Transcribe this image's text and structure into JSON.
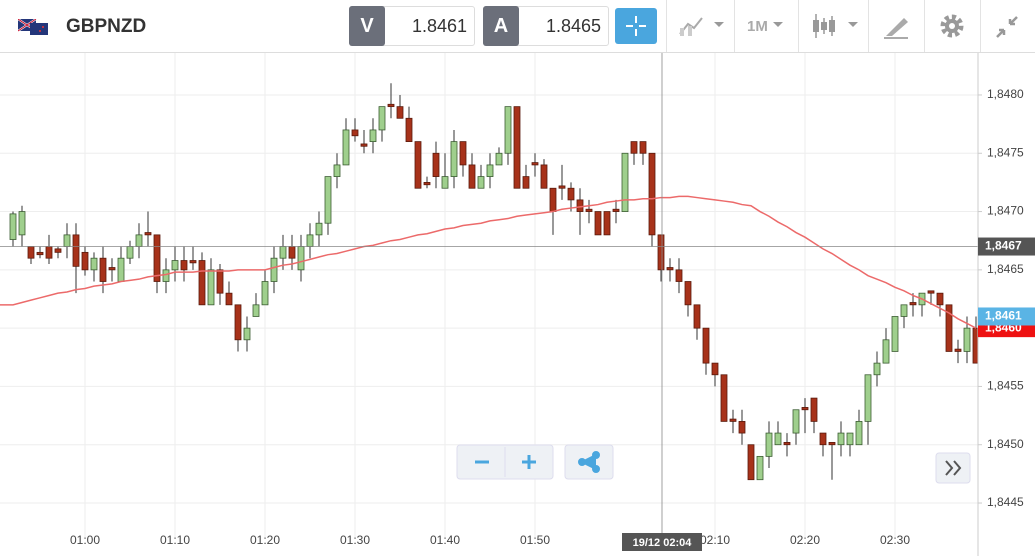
{
  "header": {
    "symbol": "GBPNZD",
    "bid_label": "V",
    "bid": "1.8461",
    "ask_label": "A",
    "ask": "1.8465",
    "timeframe": "1M"
  },
  "chart_data": {
    "type": "candlestick",
    "categories": [
      null,
      null,
      null,
      null,
      null,
      null,
      null,
      null,
      "01:00",
      null,
      null,
      null,
      null,
      null,
      null,
      null,
      null,
      null,
      "01:10",
      null,
      null,
      null,
      null,
      null,
      null,
      null,
      null,
      null,
      "01:20",
      null,
      null,
      null,
      null,
      null,
      null,
      null,
      null,
      null,
      "01:30",
      null,
      null,
      null,
      null,
      null,
      null,
      null,
      null,
      null,
      "01:40",
      null,
      null,
      null,
      null,
      null,
      null,
      null,
      null,
      null,
      "01:50",
      null,
      null,
      null,
      null,
      null,
      null,
      null,
      null,
      null,
      null,
      null,
      null,
      null,
      null,
      null,
      null,
      null,
      null,
      null,
      "02:10",
      null,
      null,
      null,
      null,
      null,
      null,
      null,
      null,
      null,
      "02:20",
      null,
      null,
      null,
      null,
      null,
      null,
      null,
      null,
      null,
      "02:30",
      null,
      null,
      null,
      null,
      null,
      null,
      null,
      null,
      null
    ],
    "open": [
      1.84676,
      1.8468,
      1.8467,
      1.84665,
      1.8467,
      1.84668,
      1.8467,
      1.8468,
      1.84665,
      1.8465,
      1.8466,
      1.84652,
      1.8464,
      1.8466,
      1.8467,
      1.84682,
      1.8468,
      1.8464,
      1.8465,
      1.84658,
      1.84658,
      1.84658,
      1.8462,
      1.8465,
      1.8463,
      1.8462,
      1.8459,
      1.8461,
      1.8462,
      1.8464,
      1.8466,
      1.8467,
      1.8465,
      1.8467,
      1.8468,
      1.8469,
      1.8473,
      1.8474,
      1.8477,
      1.84758,
      1.8476,
      1.8477,
      1.84792,
      1.8479,
      1.8478,
      1.8476,
      1.84725,
      1.8475,
      1.8472,
      1.8473,
      1.8476,
      1.8474,
      1.8472,
      1.8473,
      1.8474,
      1.8475,
      1.8479,
      1.8473,
      1.84742,
      1.8474,
      1.8472,
      1.84722,
      1.8472,
      1.8471,
      1.84702,
      1.847,
      1.847,
      1.84702,
      1.847,
      1.8476,
      1.8476,
      1.8475,
      1.8468,
      1.84652,
      1.8465,
      1.8464,
      1.8462,
      1.846,
      1.8457,
      1.8456,
      1.84522,
      1.8452,
      1.845,
      1.8447,
      1.8449,
      1.845,
      1.84502,
      1.8451,
      1.84532,
      1.8454,
      1.8451,
      1.84502,
      1.845,
      1.845,
      1.845,
      1.8452,
      1.8456,
      1.8457,
      1.8458,
      1.8461,
      1.84622,
      1.8462,
      1.84632,
      1.8463,
      1.8462,
      1.84582,
      1.8458,
      1.846
    ],
    "high": [
      1.847,
      1.84705,
      1.8467,
      1.8467,
      1.8468,
      1.8467,
      1.8469,
      1.8469,
      1.8467,
      1.84665,
      1.8467,
      1.8466,
      1.8467,
      1.84675,
      1.8469,
      1.847,
      1.8468,
      1.8466,
      1.8467,
      1.8467,
      1.8467,
      1.84665,
      1.8466,
      1.84655,
      1.8464,
      1.8462,
      1.8461,
      1.8463,
      1.8465,
      1.8467,
      1.8468,
      1.8468,
      1.8468,
      1.8469,
      1.847,
      1.8473,
      1.8475,
      1.8478,
      1.8478,
      1.8477,
      1.8478,
      1.8479,
      1.8481,
      1.848,
      1.8479,
      1.8476,
      1.8473,
      1.8476,
      1.8475,
      1.8477,
      1.8476,
      1.8475,
      1.8474,
      1.8475,
      1.84755,
      1.8479,
      1.8479,
      1.8474,
      1.8475,
      1.84745,
      1.8472,
      1.8474,
      1.84725,
      1.8472,
      1.8471,
      1.847,
      1.847,
      1.8471,
      1.8475,
      1.8476,
      1.8476,
      1.8475,
      1.8468,
      1.8466,
      1.8466,
      1.8464,
      1.8462,
      1.846,
      1.8457,
      1.8456,
      1.8453,
      1.8453,
      1.845,
      1.8449,
      1.8452,
      1.8452,
      1.8451,
      1.8453,
      1.8454,
      1.8454,
      1.8451,
      1.845,
      1.8452,
      1.8451,
      1.8453,
      1.8456,
      1.8458,
      1.846,
      1.8461,
      1.8462,
      1.8463,
      1.8463,
      1.8463,
      1.8463,
      1.8462,
      1.8459,
      1.8461,
      1.8461
    ],
    "low": [
      1.8467,
      1.8467,
      1.84655,
      1.8466,
      1.84655,
      1.8466,
      1.8466,
      1.8463,
      1.84645,
      1.8464,
      1.8463,
      1.8464,
      1.8464,
      1.84655,
      1.8466,
      1.8467,
      1.8463,
      1.8463,
      1.8464,
      1.8464,
      1.8465,
      1.8462,
      1.8462,
      1.8462,
      1.8462,
      1.8458,
      1.8458,
      1.8461,
      1.8462,
      1.8463,
      1.8465,
      1.8465,
      1.8464,
      1.8466,
      1.8467,
      1.8468,
      1.8472,
      1.8474,
      1.8476,
      1.8475,
      1.8475,
      1.8476,
      1.8478,
      1.8478,
      1.8476,
      1.8472,
      1.8472,
      1.8472,
      1.8472,
      1.8472,
      1.8473,
      1.8472,
      1.8472,
      1.8472,
      1.8474,
      1.8474,
      1.8472,
      1.8472,
      1.8473,
      1.8472,
      1.8468,
      1.8471,
      1.847,
      1.8468,
      1.8469,
      1.8468,
      1.8468,
      1.8469,
      1.847,
      1.8474,
      1.8474,
      1.8467,
      1.8464,
      1.8464,
      1.8463,
      1.8461,
      1.8459,
      1.8456,
      1.8455,
      1.8452,
      1.8451,
      1.845,
      1.8447,
      1.8447,
      1.8448,
      1.845,
      1.8449,
      1.845,
      1.8451,
      1.8451,
      1.8449,
      1.8447,
      1.8449,
      1.8449,
      1.845,
      1.845,
      1.8455,
      1.8457,
      1.8458,
      1.846,
      1.8461,
      1.8461,
      1.8462,
      1.8461,
      1.8458,
      1.8457,
      1.8457,
      1.8457
    ],
    "close": [
      1.84698,
      1.847,
      1.8466,
      1.84663,
      1.8466,
      1.84665,
      1.8468,
      1.84653,
      1.8465,
      1.8466,
      1.8464,
      1.8465,
      1.8466,
      1.8467,
      1.8468,
      1.8468,
      1.8464,
      1.8465,
      1.84658,
      1.8465,
      1.84656,
      1.8462,
      1.8465,
      1.8463,
      1.8462,
      1.8459,
      1.846,
      1.8462,
      1.8464,
      1.8466,
      1.8467,
      1.8466,
      1.8467,
      1.8468,
      1.8469,
      1.8473,
      1.8474,
      1.8477,
      1.84765,
      1.84756,
      1.8477,
      1.8479,
      1.8479,
      1.8478,
      1.8476,
      1.8472,
      1.84723,
      1.8473,
      1.8473,
      1.8476,
      1.8474,
      1.8472,
      1.8473,
      1.8474,
      1.8475,
      1.8479,
      1.8472,
      1.8472,
      1.8474,
      1.8472,
      1.847,
      1.8472,
      1.8471,
      1.847,
      1.847,
      1.8468,
      1.8468,
      1.847,
      1.8475,
      1.8475,
      1.8475,
      1.8468,
      1.8465,
      1.8465,
      1.8464,
      1.8462,
      1.846,
      1.8457,
      1.8456,
      1.8452,
      1.8452,
      1.8451,
      1.8447,
      1.8449,
      1.8451,
      1.8451,
      1.845,
      1.8453,
      1.8453,
      1.8452,
      1.845,
      1.845,
      1.8451,
      1.8451,
      1.8452,
      1.8456,
      1.8457,
      1.8459,
      1.8461,
      1.8462,
      1.8462,
      1.8463,
      1.8463,
      1.8462,
      1.8458,
      1.8458,
      1.846,
      1.8457
    ],
    "up_color": "#9fcf8d",
    "down_color": "#a7321a",
    "ma": {
      "color": "#ec6a6a",
      "values": [
        1.8462,
        1.84622,
        1.84624,
        1.84626,
        1.84628,
        1.8463,
        1.84631,
        1.84633,
        1.84634,
        1.84636,
        1.84637,
        1.84638,
        1.8464,
        1.84641,
        1.84642,
        1.84644,
        1.84645,
        1.84646,
        1.84648,
        1.84648,
        1.84648,
        1.84649,
        1.84649,
        1.84649,
        1.84649,
        1.8465,
        1.8465,
        1.8465,
        1.8465,
        1.84652,
        1.84654,
        1.84655,
        1.84657,
        1.84659,
        1.84661,
        1.84663,
        1.84664,
        1.84666,
        1.84668,
        1.8467,
        1.84671,
        1.84673,
        1.84675,
        1.84676,
        1.84678,
        1.8468,
        1.84681,
        1.84683,
        1.84685,
        1.84686,
        1.84688,
        1.84689,
        1.8469,
        1.84692,
        1.84693,
        1.84694,
        1.84696,
        1.84697,
        1.84698,
        1.84699,
        1.847,
        1.84702,
        1.84703,
        1.84704,
        1.84705,
        1.84706,
        1.84708,
        1.84709,
        1.8471,
        1.8471,
        1.84711,
        1.84711,
        1.84712,
        1.84712,
        1.84713,
        1.84713,
        1.84712,
        1.84711,
        1.8471,
        1.84709,
        1.84708,
        1.84706,
        1.84705,
        1.847,
        1.84696,
        1.84691,
        1.84687,
        1.84682,
        1.84678,
        1.84673,
        1.84668,
        1.84664,
        1.84659,
        1.84654,
        1.8465,
        1.84645,
        1.84642,
        1.84639,
        1.84635,
        1.84632,
        1.84628,
        1.84625,
        1.84621,
        1.84617,
        1.84613,
        1.84608,
        1.84604,
        1.846
      ]
    },
    "ylim": [
      1.84426,
      1.84836
    ],
    "yticks": [
      {
        "value": 1.8445,
        "label": "1,8445"
      },
      {
        "value": 1.845,
        "label": "1,8450"
      },
      {
        "value": 1.8455,
        "label": "1,8455"
      },
      {
        "value": 1.846,
        "label": "1,8460"
      },
      {
        "value": 1.8465,
        "label": "1,8465"
      },
      {
        "value": 1.847,
        "label": "1,8470"
      },
      {
        "value": 1.8475,
        "label": "1,8475"
      },
      {
        "value": 1.848,
        "label": "1,8480"
      }
    ],
    "grid": true,
    "crosshair": {
      "time": "19/12 02:04",
      "price": {
        "value": 1.8467,
        "label": "1,8467"
      }
    },
    "price_tags": [
      {
        "value": 1.846,
        "label": "1,8460",
        "color": "#ee1111"
      },
      {
        "value": 1.8461,
        "label": "1,8461",
        "color": "#5ab4e5"
      }
    ]
  }
}
